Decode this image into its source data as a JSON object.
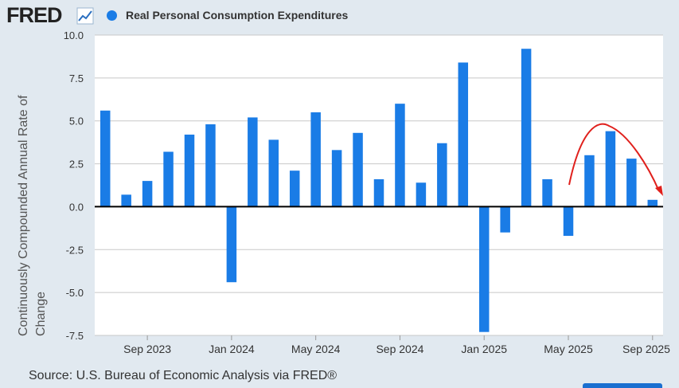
{
  "header": {
    "logo_text": "FRED",
    "logo_icon": "line-chart-icon"
  },
  "colors": {
    "bar": "#1a7ce6",
    "annotation": "#e0201c",
    "grid": "#c8c8c8"
  },
  "chart_data": {
    "type": "bar",
    "series": [
      {
        "name": "Real Personal Consumption Expenditures",
        "values": [
          5.6,
          0.7,
          1.5,
          3.2,
          4.2,
          4.8,
          -4.4,
          5.2,
          3.9,
          2.1,
          5.5,
          3.3,
          4.3,
          1.6,
          6.0,
          1.4,
          3.7,
          8.4,
          -7.3,
          -1.5,
          9.2,
          1.6,
          -1.7,
          3.0,
          4.4,
          2.8,
          0.4
        ]
      }
    ],
    "categories": [
      "Jul 2023",
      "Aug 2023",
      "Sep 2023",
      "Oct 2023",
      "Nov 2023",
      "Dec 2023",
      "Jan 2024",
      "Feb 2024",
      "Mar 2024",
      "Apr 2024",
      "May 2024",
      "Jun 2024",
      "Jul 2024",
      "Aug 2024",
      "Sep 2024",
      "Oct 2024",
      "Nov 2024",
      "Dec 2024",
      "Jan 2025",
      "Feb 2025",
      "Mar 2025",
      "Apr 2025",
      "May 2025",
      "Jun 2025",
      "Jul 2025",
      "Aug 2025",
      "Sep 2025"
    ],
    "x_tick_labels": [
      {
        "label": "Sep 2023",
        "index": 2
      },
      {
        "label": "Jan 2024",
        "index": 6
      },
      {
        "label": "May 2024",
        "index": 10
      },
      {
        "label": "Sep 2024",
        "index": 14
      },
      {
        "label": "Jan 2025",
        "index": 18
      },
      {
        "label": "May 2025",
        "index": 22
      },
      {
        "label": "Sep 2025",
        "index": 26
      }
    ],
    "y_ticks": [
      "10.0",
      "7.5",
      "5.0",
      "2.5",
      "0.0",
      "-2.5",
      "-5.0",
      "-7.5"
    ],
    "ylim": [
      -7.5,
      10.0
    ],
    "ylabel_line1": "Continuously Compounded Annual Rate of",
    "ylabel_line2": "Change",
    "xlabel": "",
    "grid": true,
    "legend_position": "top-left"
  },
  "footer": {
    "source": "Source: U.S. Bureau of Economic Analysis via FRED®"
  }
}
